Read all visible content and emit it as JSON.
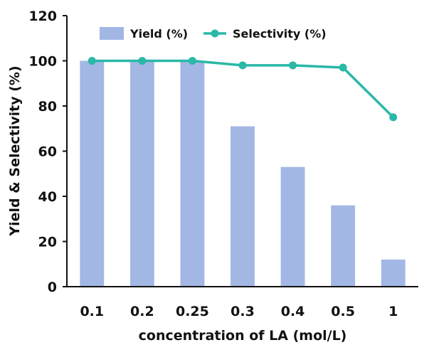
{
  "chart_data": {
    "type": "bar",
    "categories": [
      "0.1",
      "0.2",
      "0.25",
      "0.3",
      "0.4",
      "0.5",
      "1"
    ],
    "series": [
      {
        "name": "Yield (%)",
        "type": "bar",
        "color": "#a3b7e4",
        "values": [
          100,
          100,
          100,
          71,
          53,
          36,
          12
        ]
      },
      {
        "name": "Selectivity (%)",
        "type": "line",
        "color": "#2ab8a7",
        "values": [
          100,
          100,
          100,
          98,
          98,
          97,
          75
        ]
      }
    ],
    "xlabel": "concentration of LA (mol/L)",
    "ylabel": "Yield & Selectivity (%)",
    "ylim": [
      0,
      120
    ],
    "yticks": [
      0,
      20,
      40,
      60,
      80,
      100,
      120
    ],
    "grid": false,
    "legend": "top"
  }
}
